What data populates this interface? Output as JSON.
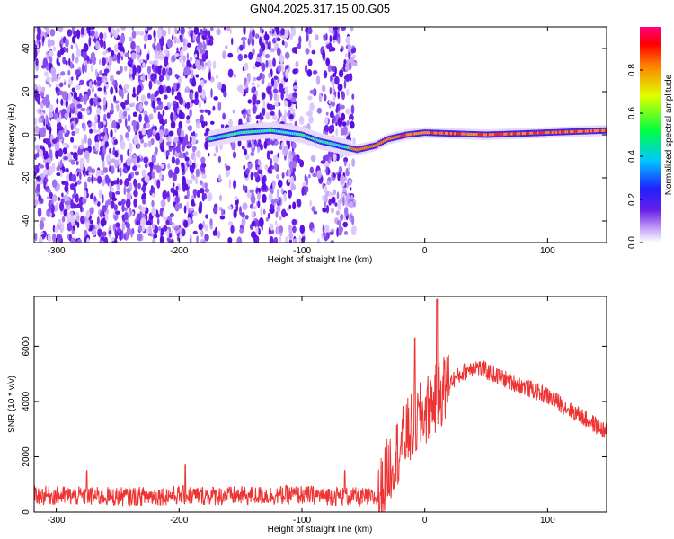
{
  "title": "GN04.2025.317.15.00.G05",
  "chart_data": [
    {
      "type": "heatmap",
      "name": "spectrogram",
      "xlabel": "Height of straight line (km)",
      "ylabel": "Frequency (Hz)",
      "xlim": [
        -318,
        148
      ],
      "ylim": [
        -50,
        50
      ],
      "xticks": [
        -300,
        -200,
        -100,
        0,
        100
      ],
      "yticks": [
        -40,
        -20,
        0,
        20,
        40
      ],
      "colorbar": {
        "label": "Normalized spectral amplitude",
        "range": [
          0,
          1
        ],
        "ticks": [
          "0.0",
          "0.2",
          "0.4",
          "0.6",
          "0.8"
        ],
        "tick_values": [
          0.0,
          0.2,
          0.4,
          0.6,
          0.8
        ]
      },
      "noise_region_x": [
        -318,
        -57
      ],
      "signal_center_track": [
        {
          "x": -175,
          "y": -2
        },
        {
          "x": -150,
          "y": 1
        },
        {
          "x": -125,
          "y": 2
        },
        {
          "x": -100,
          "y": 0
        },
        {
          "x": -85,
          "y": -3
        },
        {
          "x": -70,
          "y": -5
        },
        {
          "x": -55,
          "y": -7
        },
        {
          "x": -40,
          "y": -5
        },
        {
          "x": -30,
          "y": -2
        },
        {
          "x": -15,
          "y": 0
        },
        {
          "x": 0,
          "y": 1
        },
        {
          "x": 50,
          "y": 0
        },
        {
          "x": 100,
          "y": 1
        },
        {
          "x": 148,
          "y": 2
        }
      ]
    },
    {
      "type": "line",
      "name": "snr",
      "xlabel": "Height of straight line (km)",
      "ylabel": "SNR (10 * v/v)",
      "xlim": [
        -318,
        148
      ],
      "ylim": [
        0,
        7800
      ],
      "xticks": [
        -300,
        -200,
        -100,
        0,
        100
      ],
      "yticks": [
        0,
        2000,
        4000,
        6000
      ],
      "color": "#ee3333",
      "envelope": [
        {
          "x": -318,
          "y": 500
        },
        {
          "x": -250,
          "y": 450
        },
        {
          "x": -200,
          "y": 500
        },
        {
          "x": -150,
          "y": 480
        },
        {
          "x": -100,
          "y": 520
        },
        {
          "x": -60,
          "y": 450
        },
        {
          "x": -38,
          "y": 400
        },
        {
          "x": -30,
          "y": 1500
        },
        {
          "x": -15,
          "y": 2800
        },
        {
          "x": 0,
          "y": 3600
        },
        {
          "x": 20,
          "y": 4700
        },
        {
          "x": 40,
          "y": 5300
        },
        {
          "x": 60,
          "y": 4900
        },
        {
          "x": 100,
          "y": 4200
        },
        {
          "x": 148,
          "y": 2900
        }
      ],
      "peaks": [
        {
          "x": -275,
          "y": 1500
        },
        {
          "x": -195,
          "y": 1700
        },
        {
          "x": -65,
          "y": 1500
        },
        {
          "x": -8,
          "y": 6300
        },
        {
          "x": 10,
          "y": 7700
        }
      ]
    }
  ],
  "colors": {
    "trace": "#ee3333",
    "noise": "#7733ee"
  }
}
